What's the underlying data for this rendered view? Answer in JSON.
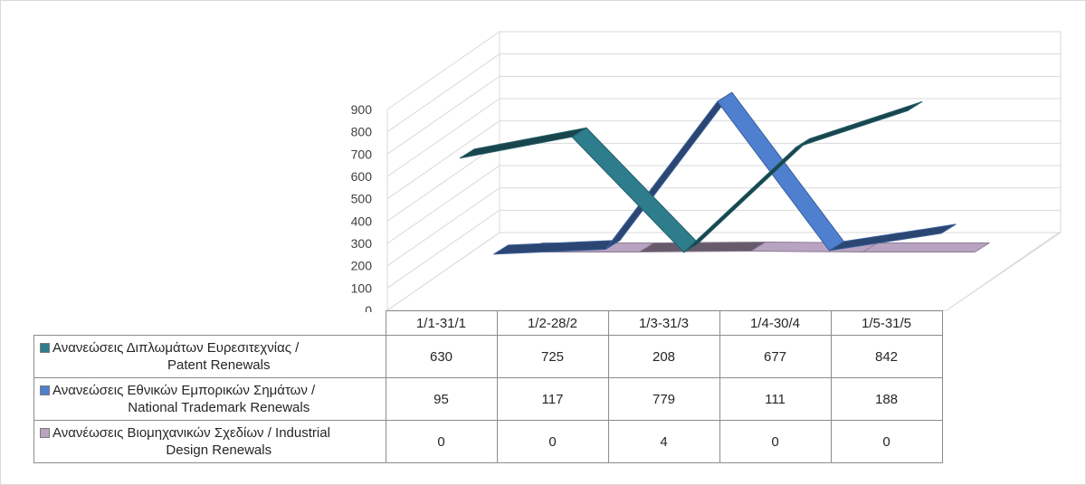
{
  "chart_data": {
    "type": "line",
    "variant": "3d-ribbon",
    "title": "",
    "xlabel": "",
    "ylabel": "",
    "categories": [
      "1/1-31/1",
      "1/2-28/2",
      "1/3-31/3",
      "1/4-30/4",
      "1/5-31/5"
    ],
    "ylim": [
      0,
      900
    ],
    "yticks": [
      "0",
      "100",
      "200",
      "300",
      "400",
      "500",
      "600",
      "700",
      "800",
      "900"
    ],
    "grid": true,
    "legend": "data-table",
    "series": [
      {
        "name_line1": "Ανανεώσεις Διπλωμάτων Ευρεσιτεχνίας  /",
        "name_line2": "Patent Renewals",
        "values": [
          630,
          725,
          208,
          677,
          842
        ],
        "value_labels": [
          "630",
          "725",
          "208",
          "677",
          "842"
        ],
        "color": "#2e7d8c"
      },
      {
        "name_line1": "Ανανεώσεις Εθνικών Εμπορικών Σημάτων /",
        "name_line2": "National Trademark Renewals",
        "values": [
          95,
          117,
          779,
          111,
          188
        ],
        "value_labels": [
          "95",
          "117",
          "779",
          "111",
          "188"
        ],
        "color": "#4f7fcf"
      },
      {
        "name_line1": "Ανανέωσεις Βιομηχανικών Σχεδίων / Industrial",
        "name_line2": "Design Renewals",
        "values": [
          0,
          0,
          4,
          0,
          0
        ],
        "value_labels": [
          "0",
          "0",
          "4",
          "0",
          "0"
        ],
        "color": "#b9a3c2"
      }
    ]
  }
}
